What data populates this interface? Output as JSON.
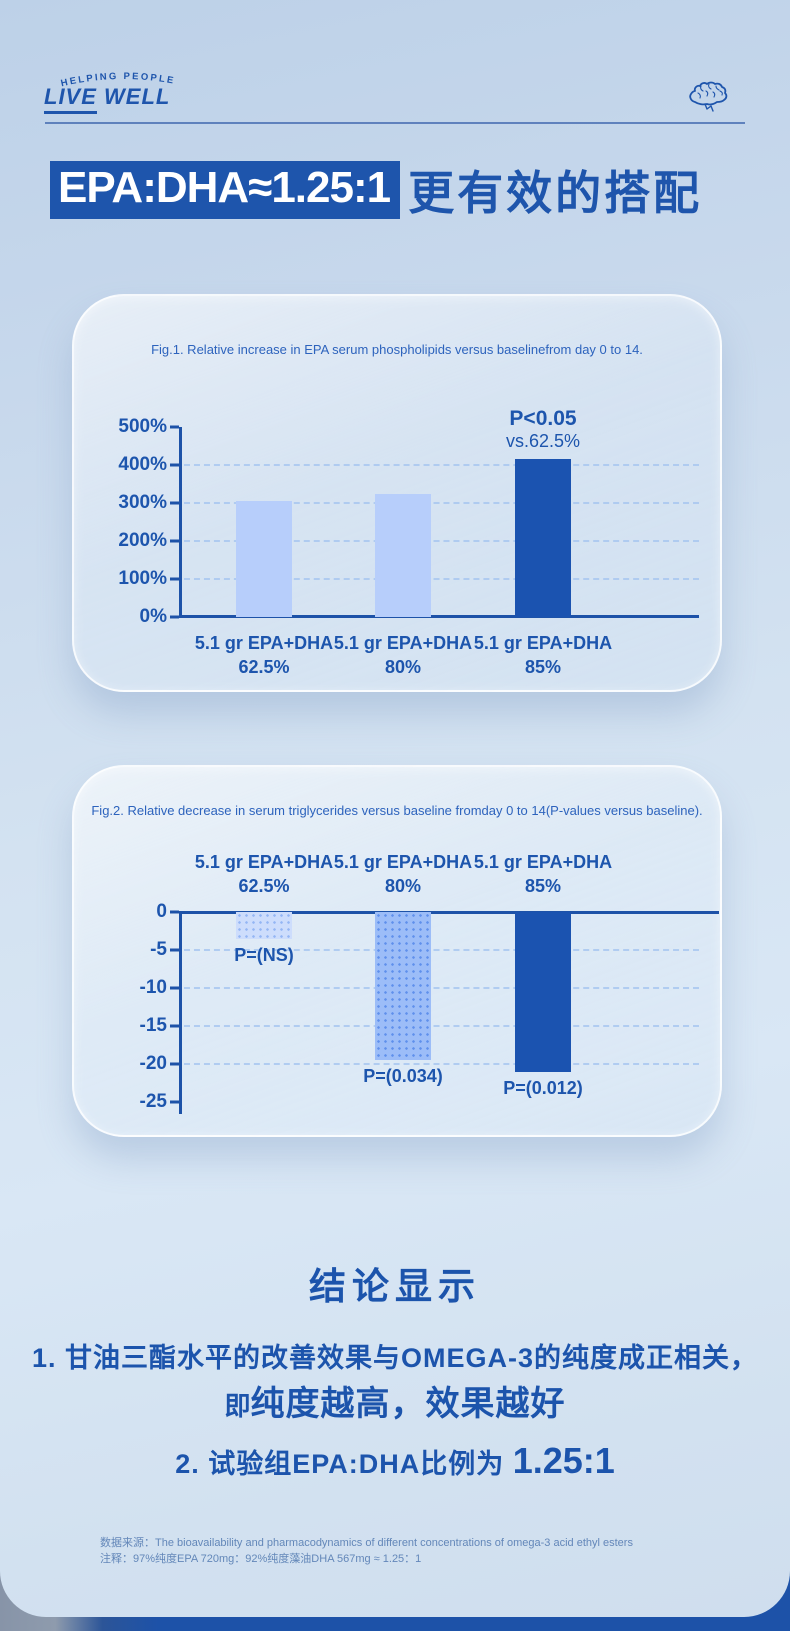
{
  "header": {
    "tagline": "HELPING PEOPLE",
    "brand_word1": "LIVE",
    "brand_word2": "WELL"
  },
  "title": {
    "highlight": "EPA:DHA≈1.25:1",
    "rest": "更有效的搭配"
  },
  "chart_data": [
    {
      "type": "bar",
      "title": "Fig.1. Relative increase in EPA serum phospholipids versus baselinefrom day 0 to 14.",
      "direction": "up",
      "categories": [
        {
          "line1": "5.1 gr EPA+DHA",
          "line2": "62.5%"
        },
        {
          "line1": "5.1 gr EPA+DHA",
          "line2": "80%"
        },
        {
          "line1": "5.1 gr EPA+DHA",
          "line2": "85%"
        }
      ],
      "values": [
        305,
        325,
        415
      ],
      "unit": "%",
      "ylim": [
        0,
        500
      ],
      "yticks": [
        "500%",
        "400%",
        "300%",
        "200%",
        "100%",
        "0%"
      ],
      "gridline_ticks": [
        1,
        2,
        3,
        4
      ],
      "bar_styles": [
        "light",
        "light",
        "dark"
      ],
      "annotation": {
        "line1": "P<0.05",
        "line2": "vs.62.5%",
        "bar_index": 2
      },
      "legend": "none",
      "grid": "dashed-horizontal"
    },
    {
      "type": "bar",
      "title": "Fig.2. Relative decrease in serum triglycerides versus baseline fromday 0 to 14(P-values versus baseline).",
      "direction": "down",
      "categories": [
        {
          "line1": "5.1 gr EPA+DHA",
          "line2": "62.5%"
        },
        {
          "line1": "5.1 gr EPA+DHA",
          "line2": "80%"
        },
        {
          "line1": "5.1 gr EPA+DHA",
          "line2": "85%"
        }
      ],
      "values": [
        -3.5,
        -19.5,
        -21
      ],
      "unit": "",
      "ylim": [
        -25,
        0
      ],
      "yticks": [
        "0",
        "-5",
        "-10",
        "-15",
        "-20",
        "-25"
      ],
      "gridline_ticks": [
        1,
        2,
        3,
        4
      ],
      "bar_styles": [
        "dot-light",
        "dot-medium",
        "dark"
      ],
      "bar_labels": [
        "P=(NS)",
        "P=(0.034)",
        "P=(0.012)"
      ],
      "legend": "none",
      "grid": "dashed-horizontal"
    }
  ],
  "conclusion": {
    "heading": "结论显示",
    "point1_line1": "1. 甘油三酯水平的改善效果与OMEGA-3的纯度成正相关，",
    "point1_line2_lead": "即",
    "point1_line2_emph": "纯度越高，效果越好",
    "point2_text": "2. 试验组EPA:DHA比例为 ",
    "point2_emph": "1.25:1"
  },
  "footnote": {
    "line1": "数据来源：The bioavailability and pharmacodynamics of different concentrations of omega-3 acid ethyl esters",
    "line2": "注释：97%纯度EPA 720mg：92%纯度藻油DHA  567mg ≈ 1.25：1"
  },
  "colors": {
    "accent": "#1d55ad",
    "title_box": "#1e55ac",
    "bar_light": "#b7cefb",
    "bar_dark": "#1b53b0",
    "bar_dot_light": "#cdddfc",
    "bar_dot_medium": "#9cbdf8",
    "gridline": "#a8c7f0",
    "caption": "#2d63bd",
    "footnote_text": "#6387b9",
    "bottom_bar": "#1d52a8",
    "background_top": "#bdd1e8",
    "background_mid": "#d9e7f5"
  }
}
